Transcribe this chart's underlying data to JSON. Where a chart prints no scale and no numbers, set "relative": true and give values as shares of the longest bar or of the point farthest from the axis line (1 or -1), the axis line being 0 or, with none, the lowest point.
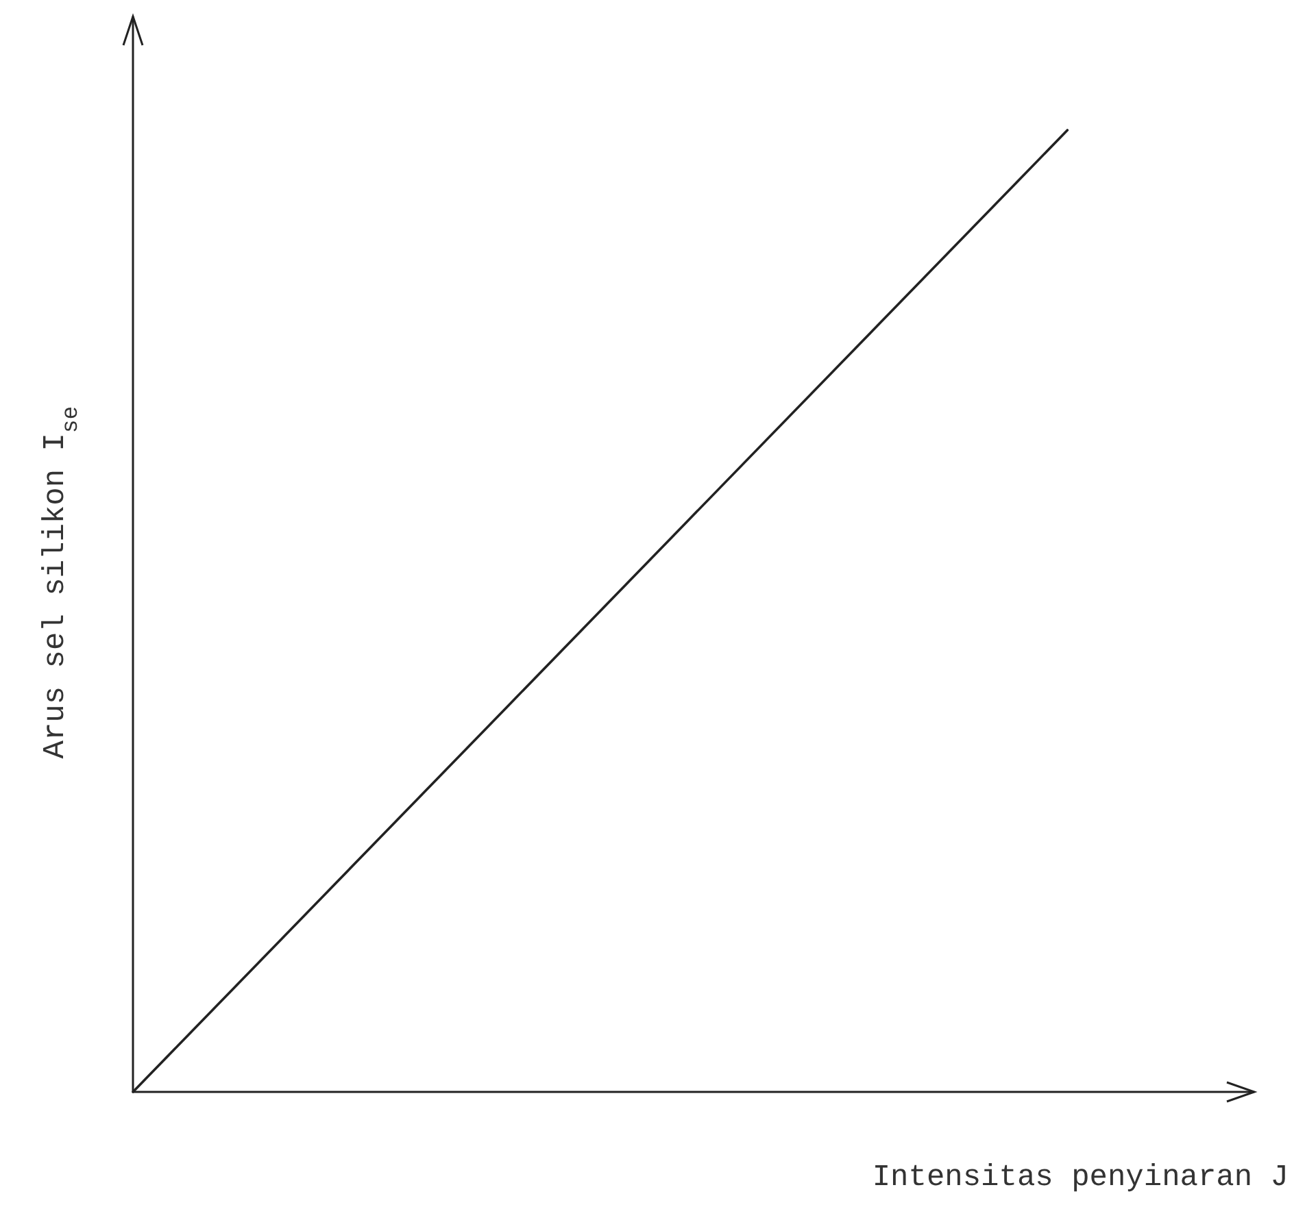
{
  "chart_data": {
    "type": "line",
    "relative": true,
    "categories": [
      null,
      null,
      null,
      null,
      null,
      null,
      null
    ],
    "xlabel": "Intensitas penyinaran J",
    "ylabel": "Arus sel silikon I$_{se}$",
    "series": [
      {
        "color": "#222222",
        "values": [
          0,
          0.2,
          0.4,
          0.6,
          0.8,
          1,
          null
        ]
      }
    ],
    "marker": "none",
    "line_style": "solid"
  }
}
